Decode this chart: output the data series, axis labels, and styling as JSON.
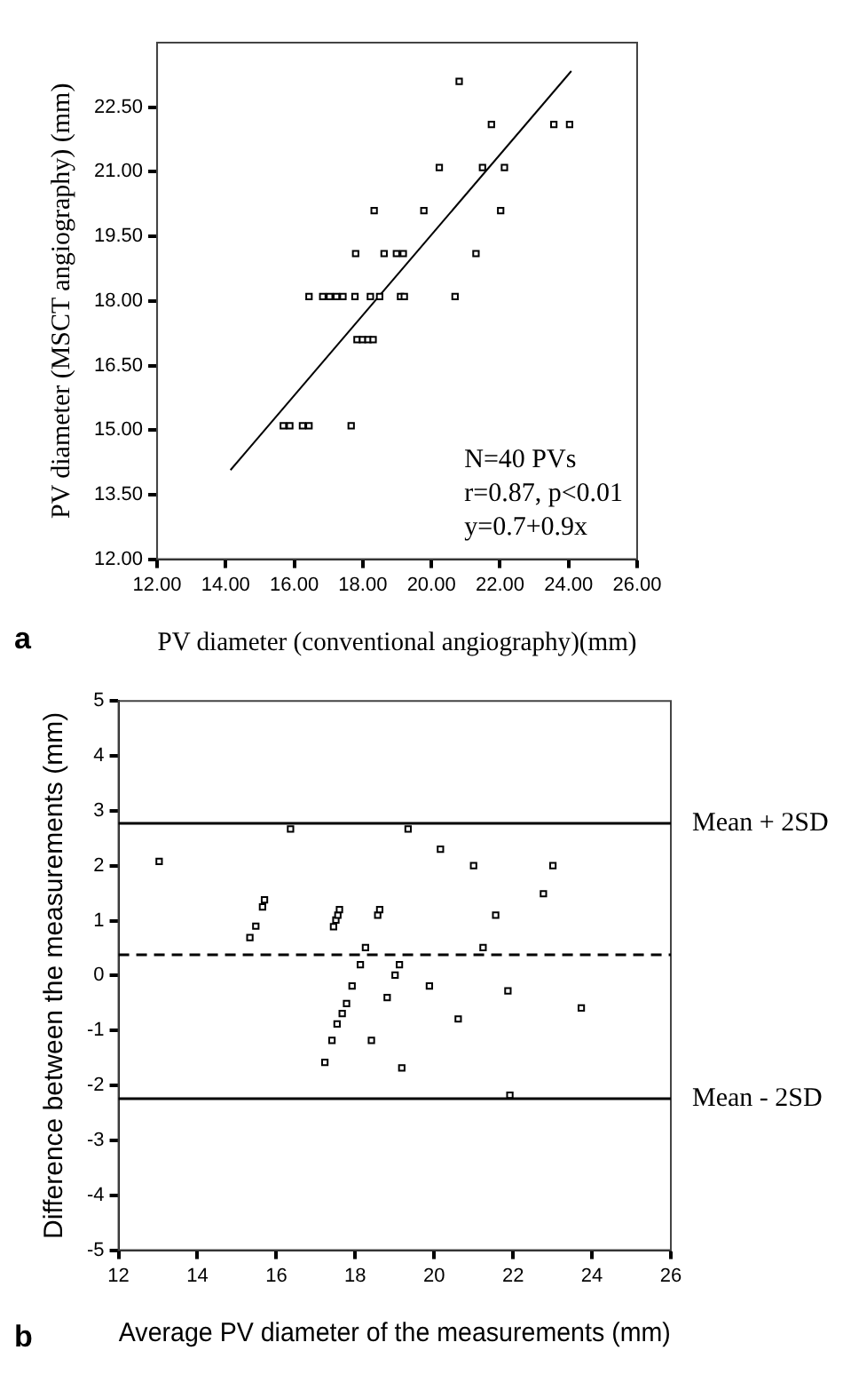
{
  "chart_data": [
    {
      "type": "scatter",
      "title": "a",
      "xlabel": "PV diameter (conventional angiography)(mm)",
      "ylabel": "PV diameter (MSCT angiography) (mm)",
      "xlim": [
        12,
        26
      ],
      "xticks": [
        {
          "value": 12,
          "label": "12.00"
        },
        {
          "value": 14,
          "label": "14.00"
        },
        {
          "value": 16,
          "label": "16.00"
        },
        {
          "value": 18,
          "label": "18.00"
        },
        {
          "value": 20,
          "label": "20.00"
        },
        {
          "value": 22,
          "label": "22.00"
        },
        {
          "value": 24,
          "label": "24.00"
        },
        {
          "value": 26,
          "label": "26.00"
        }
      ],
      "ylim": [
        12,
        24
      ],
      "yticks": [
        {
          "value": 12,
          "label": "12.00"
        },
        {
          "value": 13.5,
          "label": "13.50"
        },
        {
          "value": 15,
          "label": "15.00"
        },
        {
          "value": 16.5,
          "label": "16.50"
        },
        {
          "value": 18,
          "label": "18.00"
        },
        {
          "value": 19.5,
          "label": "19.50"
        },
        {
          "value": 21,
          "label": "21.00"
        },
        {
          "value": 22.5,
          "label": "22.50"
        }
      ],
      "grid": false,
      "legend": false,
      "annotations": [
        "N=40 PVs",
        "r=0.87, p<0.01",
        "y=0.7+0.9x"
      ],
      "series": [
        {
          "marker": "square",
          "color": "#000000",
          "x": [
            20.81,
            21.75,
            23.57,
            24.03,
            20.23,
            21.49,
            22.13,
            18.33,
            19.78,
            22.02,
            17.79,
            18.62,
            18.98,
            19.18,
            21.3,
            16.43,
            16.83,
            17.03,
            17.23,
            17.42,
            17.77,
            18.22,
            18.49,
            19.1,
            19.21,
            20.69,
            17.83,
            17.99,
            18.15,
            18.3,
            15.68,
            15.87,
            16.24,
            16.43,
            17.66
          ],
          "values": [
            23.1,
            22.1,
            22.1,
            22.1,
            21.1,
            21.1,
            21.1,
            20.1,
            20.1,
            20.1,
            19.1,
            19.1,
            19.1,
            19.1,
            19.1,
            18.1,
            18.1,
            18.1,
            18.1,
            18.1,
            18.1,
            18.1,
            18.1,
            18.1,
            18.1,
            18.1,
            17.1,
            17.1,
            17.1,
            17.1,
            15.1,
            15.1,
            15.1,
            15.1,
            15.1
          ]
        },
        {
          "type": "line",
          "marker": "none",
          "color": "#000000",
          "x": [
            14.14,
            24.08
          ],
          "values": [
            14.07,
            23.34
          ]
        }
      ]
    },
    {
      "type": "scatter",
      "title": "b",
      "xlabel": "Average PV diameter of the measurements (mm)",
      "ylabel": "Difference between the measurements (mm)",
      "xlim": [
        12,
        26
      ],
      "xticks": [
        12,
        14,
        16,
        18,
        20,
        22,
        24,
        26
      ],
      "ylim": [
        -5,
        5
      ],
      "yticks": [
        -5,
        -4,
        -3,
        -2,
        -1,
        0,
        1,
        2,
        3,
        4,
        5
      ],
      "grid": false,
      "legend": false,
      "marker": "square",
      "ref_lines": [
        {
          "axis": "y",
          "value": 2.77,
          "label": "Mean + 2SD",
          "line_style": "solid"
        },
        {
          "axis": "y",
          "value": 0.38,
          "line_style": "dashed"
        },
        {
          "axis": "y",
          "value": -2.24,
          "label": "Mean - 2SD",
          "line_style": "solid"
        }
      ],
      "series": [
        {
          "color": "#000000",
          "x": [
            13.03,
            16.36,
            19.34,
            20.16,
            21.0,
            23.01,
            22.77,
            21.56,
            21.24,
            15.33,
            15.48,
            15.65,
            15.7,
            17.45,
            17.51,
            17.56,
            17.6,
            18.57,
            18.62,
            18.26,
            18.13,
            17.92,
            17.78,
            17.67,
            17.54,
            18.81,
            19.01,
            19.12,
            19.88,
            20.61,
            21.87,
            23.73,
            17.23,
            17.41,
            18.41,
            19.18,
            21.92
          ],
          "values": [
            2.08,
            2.67,
            2.67,
            2.3,
            2.0,
            2.0,
            1.49,
            1.1,
            0.51,
            0.69,
            0.9,
            1.25,
            1.38,
            0.89,
            1.01,
            1.1,
            1.2,
            1.1,
            1.2,
            0.51,
            0.2,
            -0.19,
            -0.51,
            -0.69,
            -0.88,
            -0.4,
            0.01,
            0.2,
            -0.19,
            -0.79,
            -0.28,
            -0.59,
            -1.58,
            -1.18,
            -1.18,
            -1.68,
            -2.18
          ]
        }
      ]
    }
  ]
}
